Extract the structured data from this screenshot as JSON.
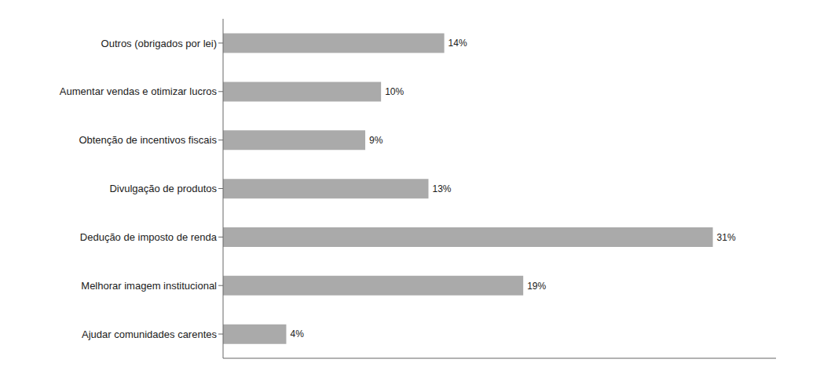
{
  "chart_data": {
    "type": "bar",
    "orientation": "horizontal",
    "categories": [
      "Ajudar comunidades carentes",
      "Melhorar imagem institucional",
      "Dedução de imposto de renda",
      "Divulgação de produtos",
      "Obtenção de incentivos fiscais",
      "Aumentar vendas e otimizar lucros",
      "Outros (obrigados por lei)"
    ],
    "values": [
      4,
      19,
      31,
      13,
      9,
      10,
      14
    ],
    "value_labels": [
      "4%",
      "19%",
      "31%",
      "13%",
      "9%",
      "10%",
      "14%"
    ],
    "data_labels": true,
    "color": "#aaaaaa",
    "xlim": [
      0,
      35
    ],
    "xticks": [],
    "tick_labels": "y",
    "grid": false
  }
}
